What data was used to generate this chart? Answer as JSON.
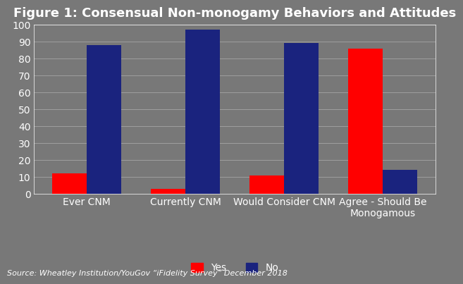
{
  "title": "Figure 1: Consensual Non-monogamy Behaviors and Attitudes",
  "categories": [
    "Ever CNM",
    "Currently CNM",
    "Would Consider CNM",
    "Agree - Should Be\nMonogamous"
  ],
  "yes_values": [
    12,
    3,
    11,
    86
  ],
  "no_values": [
    88,
    97,
    89,
    14
  ],
  "yes_color": "#FF0000",
  "no_color": "#1a237e",
  "background_color": "#787878",
  "plot_bg_color": "#787878",
  "ylim": [
    0,
    100
  ],
  "yticks": [
    0,
    10,
    20,
    30,
    40,
    50,
    60,
    70,
    80,
    90,
    100
  ],
  "bar_width": 0.35,
  "source_text": "Source: Wheatley Institution/YouGov “iFidelity Survey” December 2018",
  "legend_yes": "Yes",
  "legend_no": "No",
  "title_fontsize": 13,
  "tick_fontsize": 10,
  "xlabel_fontsize": 10,
  "source_fontsize": 8
}
